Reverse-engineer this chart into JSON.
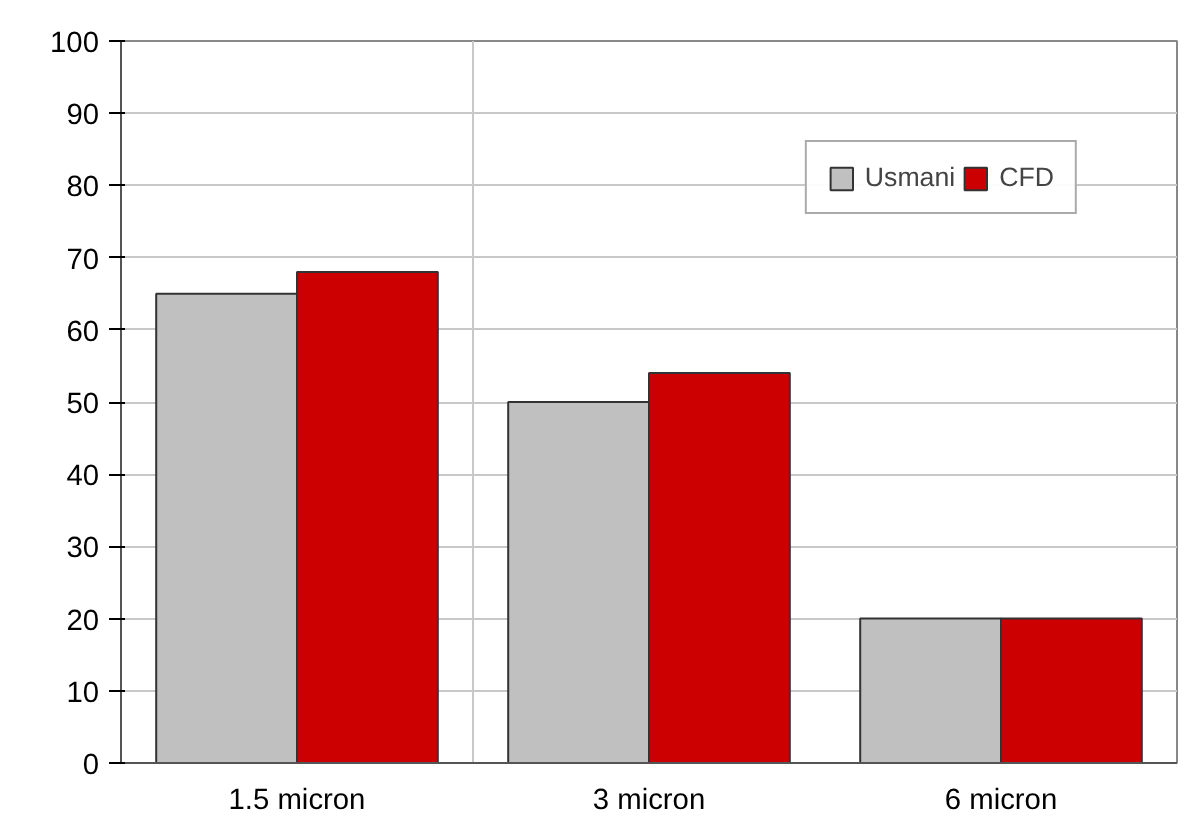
{
  "chart_data": {
    "type": "bar",
    "categories": [
      "1.5 micron",
      "3 micron",
      "6 micron"
    ],
    "series": [
      {
        "name": "Usmani",
        "color": "#c0c0c0",
        "values": [
          65,
          50,
          20
        ]
      },
      {
        "name": "CFD",
        "color": "#cc0000",
        "values": [
          68,
          54,
          20
        ]
      }
    ],
    "ylim": [
      0,
      100
    ],
    "yticks": [
      0,
      10,
      20,
      30,
      40,
      50,
      60,
      70,
      80,
      90,
      100
    ],
    "grid": true,
    "legend": "top right"
  }
}
